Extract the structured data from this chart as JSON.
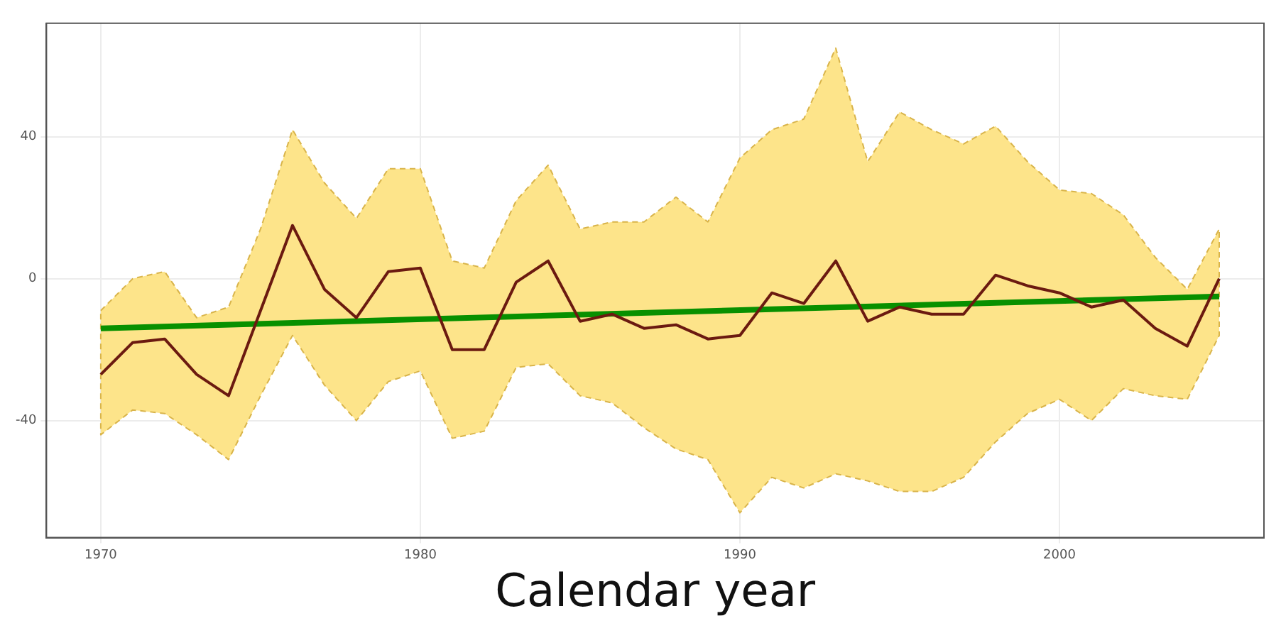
{
  "chart_data": {
    "type": "line",
    "xlabel": "Calendar year",
    "x": [
      1970,
      1971,
      1972,
      1973,
      1974,
      1975,
      1976,
      1977,
      1978,
      1979,
      1980,
      1981,
      1982,
      1983,
      1984,
      1985,
      1986,
      1987,
      1988,
      1989,
      1990,
      1991,
      1992,
      1993,
      1994,
      1995,
      1996,
      1997,
      1998,
      1999,
      2000,
      2001,
      2002,
      2003,
      2004,
      2005
    ],
    "series": [
      {
        "color": "#6b1a10",
        "values": [
          -27,
          -18,
          -17,
          -27,
          -33,
          -9,
          15,
          -3,
          -11,
          2,
          3,
          -20,
          -20,
          -1,
          5,
          -12,
          -10,
          -14,
          -13,
          -17,
          -16,
          -4,
          -7,
          5,
          -12,
          -8,
          -10,
          -10,
          1,
          -2,
          -4,
          -8,
          -6,
          -14,
          -19,
          0
        ],
        "lower": [
          -44,
          -37,
          -38,
          -44,
          -51,
          -33,
          -16,
          -30,
          -40,
          -29,
          -26,
          -45,
          -43,
          -25,
          -24,
          -33,
          -35,
          -42,
          -48,
          -51,
          -66,
          -56,
          -59,
          -55,
          -57,
          -60,
          -60,
          -56,
          -46,
          -38,
          -34,
          -40,
          -31,
          -33,
          -34,
          -16
        ],
        "upper": [
          -9,
          0,
          2,
          -11,
          -8,
          14,
          42,
          27,
          17,
          31,
          31,
          5,
          3,
          22,
          32,
          14,
          16,
          16,
          23,
          16,
          34,
          42,
          45,
          65,
          33,
          47,
          42,
          38,
          43,
          33,
          25,
          24,
          18,
          6,
          -3,
          14
        ]
      },
      {
        "type": "line",
        "color": "#089000",
        "x": [
          1970,
          2005
        ],
        "values": [
          -14,
          -5
        ]
      }
    ],
    "xlim": [
      1968.3,
      2006.4
    ],
    "ylim": [
      -73,
      72
    ],
    "xticks": [
      1970,
      1980,
      1990,
      2000
    ],
    "yticks": [
      -40,
      0,
      40
    ],
    "grid": true,
    "legend": false,
    "line_style": "solid",
    "marker": "none"
  }
}
